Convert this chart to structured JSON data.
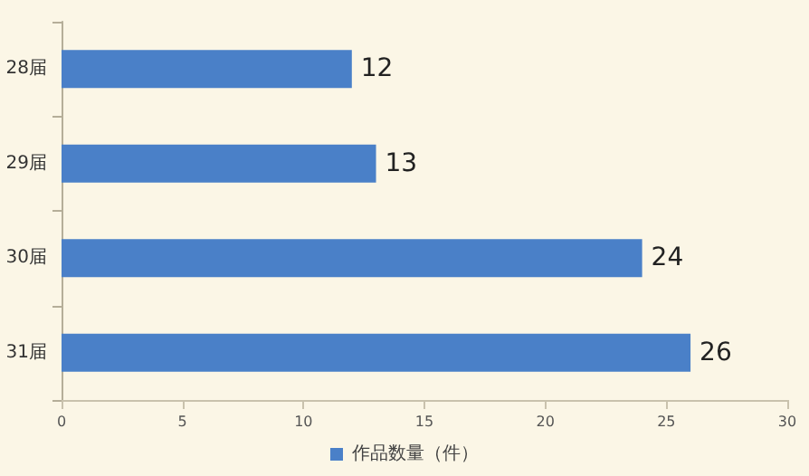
{
  "chart_data": {
    "type": "bar",
    "orientation": "horizontal",
    "categories": [
      "28届",
      "29届",
      "30届",
      "31届"
    ],
    "series": [
      {
        "name": "作品数量（件）",
        "color": "#4a80c8",
        "values": [
          12,
          13,
          24,
          26
        ]
      }
    ],
    "xlim": [
      0,
      30
    ],
    "xticks": [
      0,
      5,
      10,
      15,
      20,
      25,
      30
    ],
    "grid": false,
    "legend": "bottom",
    "data_labels": true
  }
}
